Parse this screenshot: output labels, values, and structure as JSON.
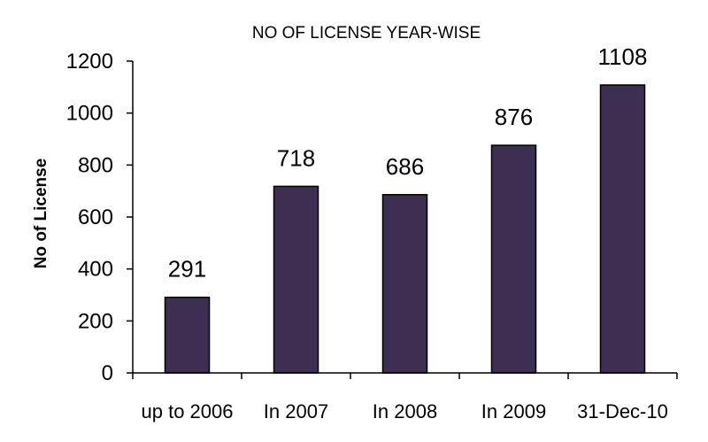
{
  "chart_data": {
    "type": "bar",
    "title": "NO OF LICENSE YEAR-WISE",
    "xlabel": "",
    "ylabel": "No of License",
    "categories": [
      "up to 2006",
      "In 2007",
      "In 2008",
      "In 2009",
      "31-Dec-10"
    ],
    "values": [
      291,
      718,
      686,
      876,
      1108
    ],
    "data_labels": [
      "291",
      "718",
      "686",
      "876",
      "1108"
    ],
    "ylim": [
      0,
      1200
    ],
    "yticks": [
      0,
      200,
      400,
      600,
      800,
      1000,
      1200
    ],
    "ytick_labels": [
      "0",
      "200",
      "400",
      "600",
      "800",
      "1000",
      "1200"
    ],
    "grid": false,
    "legend": "none",
    "bar_color": "#3d2f52"
  }
}
